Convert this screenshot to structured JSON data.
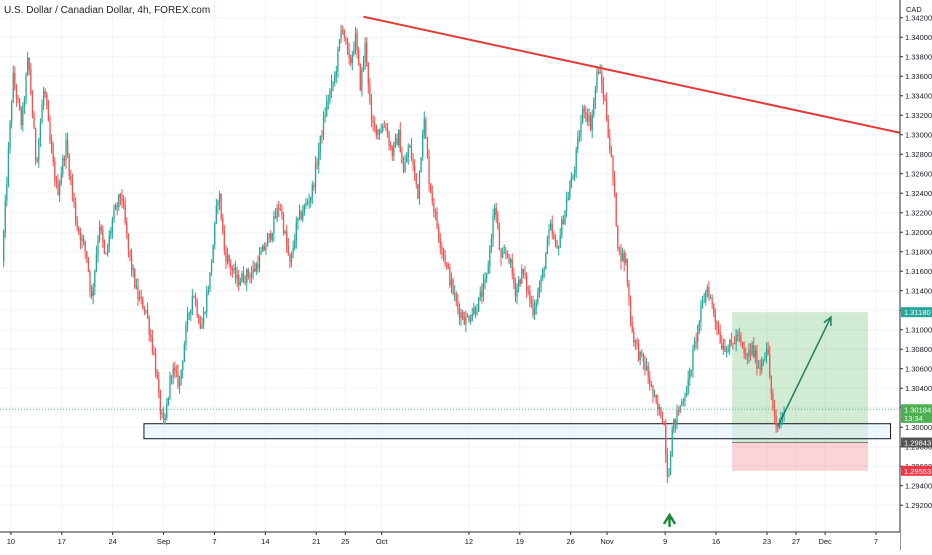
{
  "chart_data": {
    "type": "candlestick",
    "title": "U.S. Dollar / Canadian Dollar, 4h, FOREX.com",
    "currency_label": "CAD",
    "y_ticks": [
      "1.34200",
      "1.34000",
      "1.33800",
      "1.33600",
      "1.33400",
      "1.33200",
      "1.33000",
      "1.32800",
      "1.32600",
      "1.32400",
      "1.32200",
      "1.32000",
      "1.31800",
      "1.31600",
      "1.31400",
      "1.31200",
      "1.31000",
      "1.30800",
      "1.30600",
      "1.30400",
      "1.30200",
      "1.30000",
      "1.29800",
      "1.29600",
      "1.29400",
      "1.29200"
    ],
    "y_tick_values": [
      1.342,
      1.34,
      1.338,
      1.336,
      1.334,
      1.332,
      1.33,
      1.328,
      1.326,
      1.324,
      1.322,
      1.32,
      1.318,
      1.316,
      1.314,
      1.312,
      1.31,
      1.308,
      1.306,
      1.304,
      1.302,
      1.3,
      1.298,
      1.296,
      1.294,
      1.292
    ],
    "ylim": [
      1.2911,
      1.3431
    ],
    "x_ticks": [
      "10",
      "17",
      "24",
      "Sep",
      "7",
      "14",
      "21",
      "25",
      "Oct",
      "12",
      "19",
      "26",
      "Nov",
      "9",
      "16",
      "23",
      "27",
      "Dec",
      "7"
    ],
    "x_tick_days": [
      -21,
      -14,
      -7,
      0,
      7,
      14,
      21,
      25,
      30,
      42,
      49,
      56,
      61,
      69,
      76,
      83,
      87,
      91,
      98
    ],
    "xlim": [
      -22.5,
      101.3
    ],
    "price_labels": {
      "target": {
        "text": "1.31180",
        "value": 1.3118,
        "color": "#26a69a"
      },
      "current": {
        "text": "1.30184",
        "value": 1.30184,
        "color": "#4caf50"
      },
      "countdown": {
        "text": "13:34",
        "value": 1.30096,
        "color": "#4caf50"
      },
      "entry": {
        "text": "1.29843",
        "value": 1.29843,
        "color": "#555555"
      },
      "stop": {
        "text": "1.29553",
        "value": 1.29553,
        "color": "#f23645"
      }
    },
    "support_zone": {
      "x_start": -2.7,
      "x_end": 100.0,
      "y_low": 1.29882,
      "y_high": 1.30036
    },
    "trendline": {
      "x1": 27.5,
      "y1": 1.3421,
      "x2": 101.3,
      "y2": 1.3302,
      "color": "#e53935"
    },
    "position": {
      "x_start": 78.2,
      "x_end": 96.9,
      "entry": 1.29843,
      "target": 1.3118,
      "stop": 1.29553
    },
    "projection_arrow": {
      "x1": 84.5,
      "y1": 1.3001,
      "x2": 91.8,
      "y2": 1.3113
    },
    "bottom_arrow": {
      "x": 69.6,
      "color": "#1b8a3c"
    },
    "price_path_anchors": [
      [
        -22,
        1.317
      ],
      [
        -20.5,
        1.336
      ],
      [
        -19.3,
        1.331
      ],
      [
        -18.4,
        1.338
      ],
      [
        -17.3,
        1.327
      ],
      [
        -16.2,
        1.335
      ],
      [
        -15.3,
        1.3285
      ],
      [
        -14.4,
        1.324
      ],
      [
        -13.2,
        1.329
      ],
      [
        -11.8,
        1.321
      ],
      [
        -10.3,
        1.3175
      ],
      [
        -9.7,
        1.313
      ],
      [
        -8.6,
        1.321
      ],
      [
        -7.8,
        1.317
      ],
      [
        -6.9,
        1.321
      ],
      [
        -5.6,
        1.324
      ],
      [
        -4.6,
        1.318
      ],
      [
        -3.4,
        1.3135
      ],
      [
        -2.2,
        1.312
      ],
      [
        -1.0,
        1.307
      ],
      [
        -0.3,
        1.302
      ],
      [
        0.3,
        1.2998
      ],
      [
        1.3,
        1.306
      ],
      [
        2.4,
        1.3045
      ],
      [
        3.4,
        1.3105
      ],
      [
        4.3,
        1.314
      ],
      [
        5.4,
        1.31
      ],
      [
        6.6,
        1.3155
      ],
      [
        7.8,
        1.3245
      ],
      [
        8.6,
        1.318
      ],
      [
        10.3,
        1.315
      ],
      [
        12.6,
        1.316
      ],
      [
        14.8,
        1.3195
      ],
      [
        16.2,
        1.323
      ],
      [
        17.6,
        1.3165
      ],
      [
        18.6,
        1.321
      ],
      [
        20.6,
        1.324
      ],
      [
        22.6,
        1.333
      ],
      [
        23.8,
        1.336
      ],
      [
        24.8,
        1.3415
      ],
      [
        25.8,
        1.337
      ],
      [
        26.6,
        1.34
      ],
      [
        27.3,
        1.335
      ],
      [
        28.0,
        1.3395
      ],
      [
        28.8,
        1.331
      ],
      [
        29.8,
        1.3305
      ],
      [
        30.8,
        1.331
      ],
      [
        31.6,
        1.328
      ],
      [
        32.6,
        1.33
      ],
      [
        33.2,
        1.326
      ],
      [
        34.0,
        1.329
      ],
      [
        35.2,
        1.324
      ],
      [
        36.0,
        1.332
      ],
      [
        36.8,
        1.325
      ],
      [
        38.0,
        1.32
      ],
      [
        39.0,
        1.317
      ],
      [
        40.0,
        1.314
      ],
      [
        40.8,
        1.312
      ],
      [
        41.8,
        1.311
      ],
      [
        43.4,
        1.3125
      ],
      [
        44.6,
        1.315
      ],
      [
        45.8,
        1.323
      ],
      [
        46.6,
        1.317
      ],
      [
        47.6,
        1.318
      ],
      [
        48.6,
        1.314
      ],
      [
        49.6,
        1.316
      ],
      [
        51.0,
        1.312
      ],
      [
        52.2,
        1.315
      ],
      [
        53.4,
        1.3205
      ],
      [
        54.3,
        1.318
      ],
      [
        55.6,
        1.323
      ],
      [
        56.6,
        1.326
      ],
      [
        58.0,
        1.333
      ],
      [
        59.0,
        1.331
      ],
      [
        60.0,
        1.337
      ],
      [
        61.0,
        1.333
      ],
      [
        62.0,
        1.326
      ],
      [
        62.8,
        1.318
      ],
      [
        63.8,
        1.317
      ],
      [
        64.6,
        1.31
      ],
      [
        65.6,
        1.3075
      ],
      [
        66.6,
        1.306
      ],
      [
        68.0,
        1.302
      ],
      [
        69.0,
        1.301
      ],
      [
        69.6,
        1.2945
      ],
      [
        70.2,
        1.2998
      ],
      [
        71.2,
        1.302
      ],
      [
        72.4,
        1.3045
      ],
      [
        73.4,
        1.309
      ],
      [
        74.2,
        1.312
      ],
      [
        75.0,
        1.3145
      ],
      [
        76.0,
        1.3115
      ],
      [
        77.0,
        1.3085
      ],
      [
        78.2,
        1.3082
      ],
      [
        79.2,
        1.3095
      ],
      [
        80.2,
        1.307
      ],
      [
        81.2,
        1.308
      ],
      [
        82.2,
        1.306
      ],
      [
        83.2,
        1.3085
      ],
      [
        84.0,
        1.302
      ],
      [
        84.5,
        1.2995
      ],
      [
        85.4,
        1.3015
      ]
    ]
  }
}
